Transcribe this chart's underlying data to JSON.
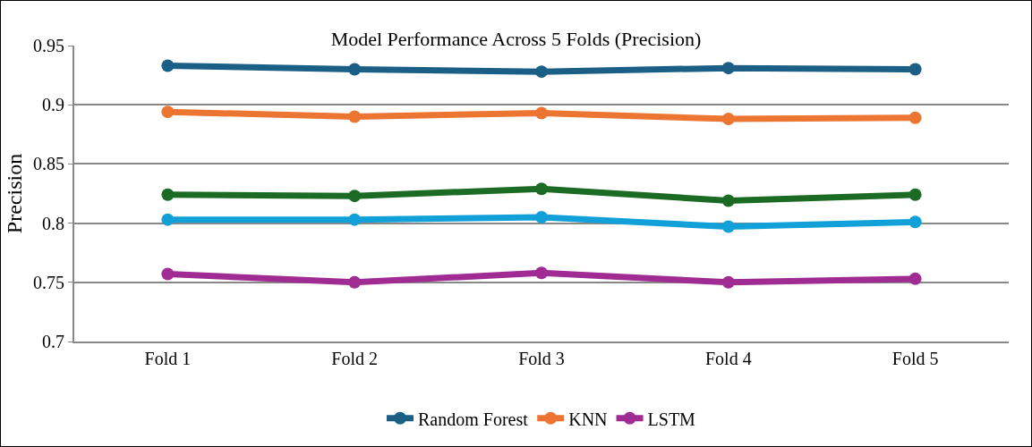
{
  "chart_data": {
    "type": "line",
    "title": "Model Performance Across 5 Folds (Precision)",
    "ylabel": "Precision",
    "categories": [
      "Fold 1",
      "Fold 2",
      "Fold 3",
      "Fold 4",
      "Fold 5"
    ],
    "series": [
      {
        "name": "Random Forest",
        "color": "#1b5f86",
        "values": [
          0.933,
          0.93,
          0.928,
          0.931,
          0.93
        ]
      },
      {
        "name": "KNN",
        "color": "#ec7532",
        "values": [
          0.894,
          0.89,
          0.893,
          0.888,
          0.889
        ]
      },
      {
        "color": "#1c6b24",
        "values": [
          0.824,
          0.823,
          0.829,
          0.819,
          0.824
        ]
      },
      {
        "color": "#12a0d8",
        "values": [
          0.803,
          0.803,
          0.805,
          0.797,
          0.801
        ]
      },
      {
        "name": "LSTM",
        "color": "#a02b93",
        "values": [
          0.757,
          0.75,
          0.758,
          0.75,
          0.753
        ]
      }
    ],
    "ylim": [
      0.7,
      0.95
    ],
    "yticks": [
      0.7,
      0.75,
      0.8,
      0.85,
      0.9,
      0.95
    ],
    "grid": "y",
    "legend": "bottom",
    "marker": "circle",
    "line_style": "solid"
  }
}
